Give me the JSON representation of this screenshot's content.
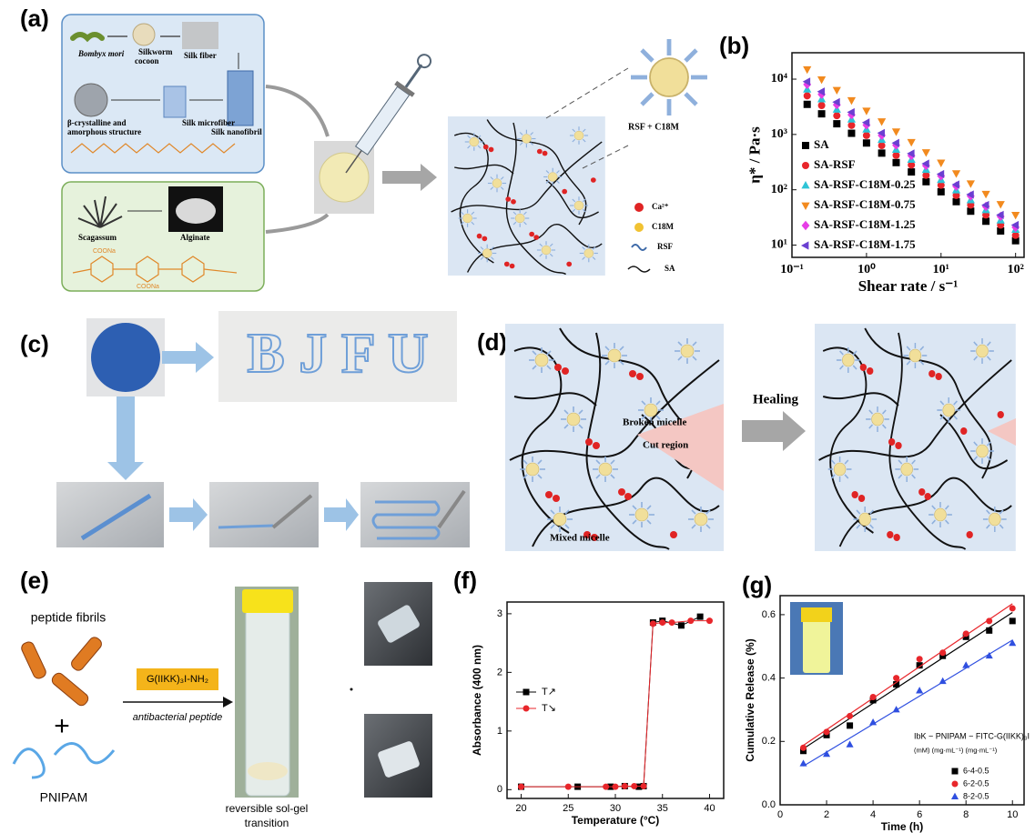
{
  "figure": {
    "panel_a": {
      "label": "(a)",
      "bombyx": "Bombyx mori",
      "cocoon": [
        "Silkworm",
        "cocoon"
      ],
      "fiber": "Silk fiber",
      "structure": [
        "β-crystalline and",
        "amorphous structure"
      ],
      "microfiber": "Silk microfiber",
      "nanofibril": "Silk nanofibril",
      "seaweed": "Scagassum",
      "alginate": "Alginate",
      "coona": [
        "COONa",
        "COONa"
      ],
      "micelle": "RSF + C18M",
      "legend": [
        "Ca²⁺",
        "C18M",
        "RSF",
        "SA"
      ]
    },
    "panel_c": {
      "label": "(c)",
      "letters": "B J F U"
    },
    "panel_d": {
      "label": "(d)",
      "broken": "Broken micelle",
      "cut": "Cut region",
      "healing": "Healing",
      "mixed": "Mixed micelle"
    },
    "panel_e": {
      "label": "(e)",
      "fibrils": "peptide fibrils",
      "plus": "+",
      "pnipam": "PNIPAM",
      "peptide": "G(IIKK)₃I-NH₂",
      "antibacterial": "antibacterial peptide",
      "transition": [
        "reversible sol-gel",
        "transition"
      ]
    }
  },
  "chart_data": [
    {
      "type": "scatter",
      "label": "(b)",
      "x_label": "Shear rate / s⁻¹",
      "y_label": "η* / Pa·s",
      "xlog": true,
      "ylog": true,
      "xlim": [
        0.1,
        130
      ],
      "ylim": [
        6,
        30000
      ],
      "xticks": [
        {
          "value": 0.1,
          "label": "10⁻¹"
        },
        {
          "value": 1,
          "label": "10⁰"
        },
        {
          "value": 10,
          "label": "10¹"
        },
        {
          "value": 100,
          "label": "10²"
        }
      ],
      "yticks": [
        {
          "value": 10,
          "label": "10¹"
        },
        {
          "value": 100,
          "label": "10²"
        },
        {
          "value": 1000,
          "label": "10³"
        },
        {
          "value": 10000,
          "label": "10⁴"
        }
      ],
      "legend": "lower left",
      "x": [
        0.16,
        0.25,
        0.4,
        0.63,
        1,
        1.6,
        2.5,
        4,
        6.3,
        10,
        16,
        25,
        40,
        63,
        100
      ],
      "series": [
        {
          "name": "SA",
          "color": "#000000",
          "marker": "square",
          "values": [
            3500,
            2360,
            1560,
            1050,
            700,
            460,
            310,
            210,
            140,
            92,
            61,
            41,
            27,
            18,
            12
          ]
        },
        {
          "name": "SA-RSF",
          "color": "#e8262b",
          "marker": "circle",
          "values": [
            5000,
            3340,
            2190,
            1460,
            960,
            630,
            420,
            280,
            183,
            121,
            79,
            53,
            35,
            23,
            15
          ]
        },
        {
          "name": "SA-RSF-C18M-0.25",
          "color": "#2ec4d6",
          "marker": "triangle-up",
          "values": [
            6500,
            4330,
            2820,
            1870,
            1230,
            800,
            530,
            350,
            230,
            151,
            98,
            65,
            43,
            28,
            19
          ]
        },
        {
          "name": "SA-RSF-C18M-0.75",
          "color": "#f28a1e",
          "marker": "triangle-down",
          "values": [
            15000,
            9860,
            6340,
            4140,
            2680,
            1720,
            1130,
            728,
            475,
            308,
            198,
            130,
            84,
            55,
            35
          ]
        },
        {
          "name": "SA-RSF-C18M-1.25",
          "color": "#e63ee6",
          "marker": "diamond",
          "values": [
            8000,
            5310,
            3440,
            2270,
            1480,
            960,
            640,
            414,
            273,
            178,
            116,
            77,
            50,
            33,
            21
          ]
        },
        {
          "name": "SA-RSF-C18M-1.75",
          "color": "#6a3fd1",
          "marker": "triangle-left",
          "values": [
            9000,
            5940,
            3840,
            2520,
            1640,
            1060,
            700,
            451,
            296,
            192,
            124,
            82,
            53,
            35,
            23
          ]
        }
      ]
    },
    {
      "type": "scatter",
      "label": "(f)",
      "x_label": "Temperature (°C)",
      "y_label": "Absorbance (400 nm)",
      "line": true,
      "xlim": [
        18.5,
        41.5
      ],
      "ylim": [
        -0.15,
        3.2
      ],
      "xticks": [
        20,
        25,
        30,
        35,
        40
      ],
      "yticks": [
        0,
        1,
        2,
        3
      ],
      "legend": "center left",
      "series": [
        {
          "name": "T↗",
          "color": "#000000",
          "marker": "square",
          "x": [
            20,
            26,
            29.5,
            31,
            32.5,
            33,
            34,
            35,
            37,
            39
          ],
          "values": [
            0.05,
            0.05,
            0.05,
            0.06,
            0.05,
            0.06,
            2.85,
            2.88,
            2.8,
            2.95
          ]
        },
        {
          "name": "T↘",
          "color": "#e8262b",
          "marker": "circle",
          "x": [
            20,
            25,
            29,
            30,
            31,
            32,
            33,
            34,
            35,
            36,
            38,
            40
          ],
          "values": [
            0.05,
            0.05,
            0.05,
            0.05,
            0.06,
            0.06,
            0.06,
            2.83,
            2.85,
            2.85,
            2.88,
            2.88
          ]
        }
      ]
    },
    {
      "type": "scatter",
      "label": "(g)",
      "x_label": "Time (h)",
      "y_label": "Cumulative Release (%)",
      "fit": true,
      "xlim": [
        0,
        10.5
      ],
      "ylim": [
        0,
        0.66
      ],
      "xticks": [
        0,
        2,
        4,
        6,
        8,
        10
      ],
      "yticks": [
        {
          "value": 0,
          "label": "0.0"
        },
        0.2,
        0.4,
        0.6
      ],
      "legend": "lower right",
      "legend_title": "IbK − PNIPAM − FITC-G(IIKK)₃I",
      "legend_units": "(mM)    (mg·mL⁻¹)    (mg·mL⁻¹)",
      "x": [
        1,
        2,
        3,
        4,
        5,
        6,
        7,
        8,
        9,
        10
      ],
      "series": [
        {
          "name": "6-4-0.5",
          "color": "#000000",
          "marker": "square",
          "values": [
            0.17,
            0.22,
            0.25,
            0.33,
            0.38,
            0.44,
            0.47,
            0.53,
            0.55,
            0.58
          ]
        },
        {
          "name": "6-2-0.5",
          "color": "#e8262b",
          "marker": "circle",
          "values": [
            0.18,
            0.23,
            0.28,
            0.34,
            0.4,
            0.46,
            0.48,
            0.54,
            0.58,
            0.62
          ]
        },
        {
          "name": "8-2-0.5",
          "color": "#2f4fe0",
          "marker": "triangle-up",
          "values": [
            0.13,
            0.16,
            0.19,
            0.26,
            0.3,
            0.36,
            0.39,
            0.44,
            0.47,
            0.51
          ]
        }
      ]
    }
  ]
}
